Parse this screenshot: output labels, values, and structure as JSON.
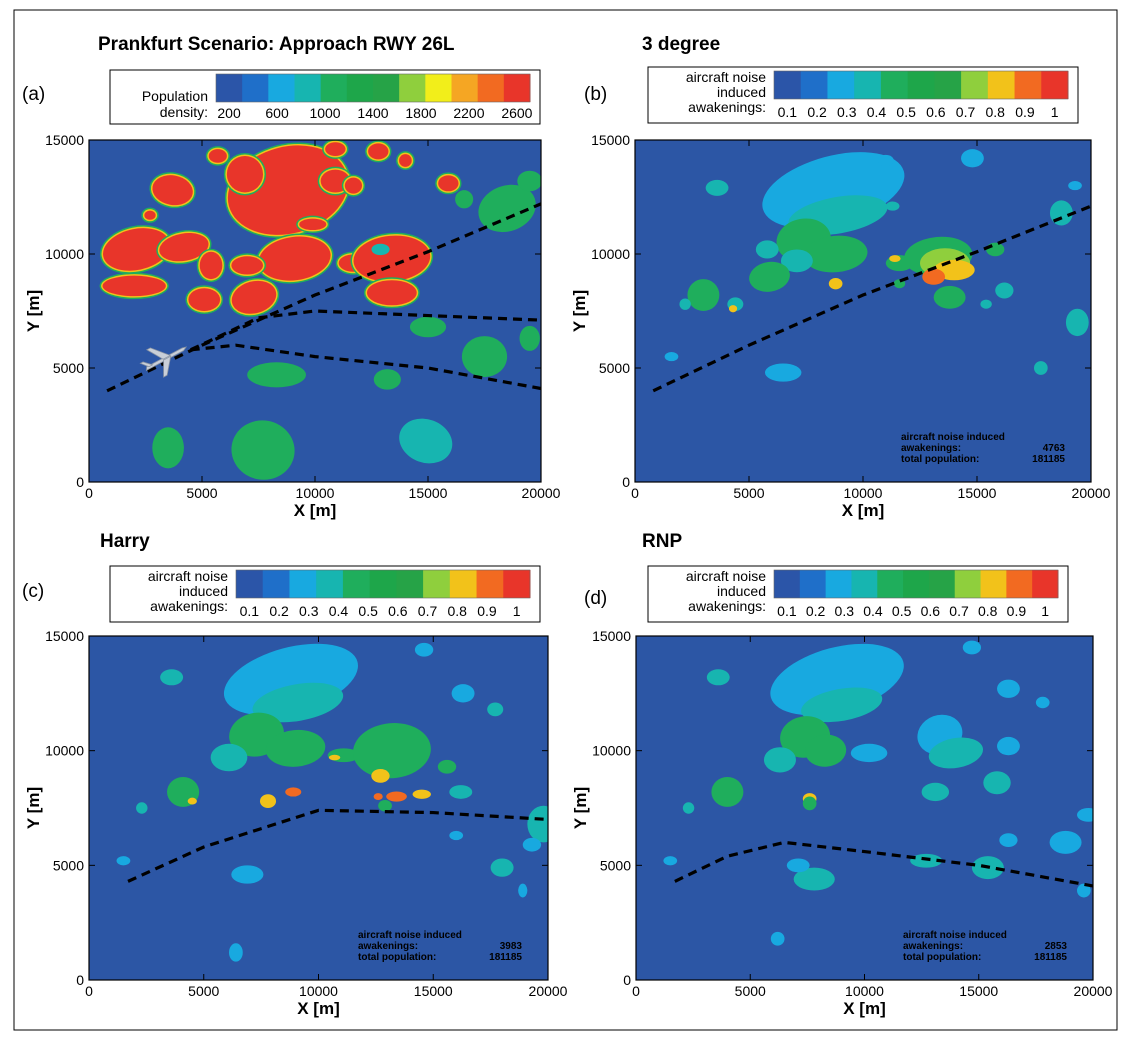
{
  "chart_data": [
    {
      "type": "heatmap",
      "panel_label": "(a)",
      "title": "Prankfurt Scenario: Approach RWY 26L",
      "xlabel": "X [m]",
      "ylabel": "Y [m]",
      "xlim": [
        0,
        20000
      ],
      "ylim": [
        0,
        15000
      ],
      "x_ticks": [
        "0",
        "5000",
        "10000",
        "15000",
        "20000"
      ],
      "y_ticks": [
        "0",
        "5000",
        "10000",
        "15000"
      ],
      "legend": {
        "title_lines": [
          "Population",
          "density:"
        ],
        "tick_labels": [
          "200",
          "600",
          "1000",
          "1400",
          "1800",
          "2200",
          "2600"
        ],
        "colors": [
          "#2b55a8",
          "#1f6fc9",
          "#18a9e0",
          "#17b5b0",
          "#1fae5c",
          "#1ea64a",
          "#26a347",
          "#8fcf3d",
          "#f2ee1a",
          "#f5a623",
          "#f26a21",
          "#e8352a"
        ]
      },
      "flight_paths": [
        {
          "points": [
            [
              800,
              4000
            ],
            [
              5000,
              6000
            ],
            [
              10000,
              8200
            ],
            [
              15000,
              10100
            ],
            [
              20000,
              12200
            ]
          ]
        },
        {
          "points": [
            [
              4500,
              5800
            ],
            [
              7500,
              7200
            ],
            [
              10000,
              7500
            ],
            [
              15000,
              7300
            ],
            [
              20000,
              7100
            ]
          ]
        },
        {
          "points": [
            [
              4500,
              5800
            ],
            [
              6500,
              6000
            ],
            [
              10000,
              5500
            ],
            [
              15000,
              5000
            ],
            [
              20000,
              4100
            ]
          ]
        }
      ],
      "aircraft_icon": "airplane-icon"
    },
    {
      "type": "heatmap",
      "panel_label": "(b)",
      "title": "3 degree",
      "xlabel": "X [m]",
      "ylabel": "Y [m]",
      "xlim": [
        0,
        20000
      ],
      "ylim": [
        0,
        15000
      ],
      "x_ticks": [
        "0",
        "5000",
        "10000",
        "15000",
        "20000"
      ],
      "y_ticks": [
        "0",
        "5000",
        "10000",
        "15000"
      ],
      "legend": {
        "title_lines": [
          "aircraft noise",
          "induced",
          "awakenings:"
        ],
        "tick_labels": [
          "0.1",
          "0.2",
          "0.3",
          "0.4",
          "0.5",
          "0.6",
          "0.7",
          "0.8",
          "0.9",
          "1"
        ],
        "colors": [
          "#2b55a8",
          "#1f6fc9",
          "#18a9e0",
          "#17b5b0",
          "#1fae5c",
          "#1ea64a",
          "#26a347",
          "#8fcf3d",
          "#f2c21a",
          "#f26a21",
          "#e8352a"
        ]
      },
      "flight_paths": [
        {
          "points": [
            [
              800,
              4000
            ],
            [
              5000,
              6000
            ],
            [
              10000,
              8200
            ],
            [
              15000,
              10100
            ],
            [
              20000,
              12100
            ]
          ]
        }
      ],
      "annotation": {
        "lines": [
          "aircraft noise induced",
          "awakenings:",
          "total population:"
        ],
        "values": [
          "4763",
          "181185"
        ]
      }
    },
    {
      "type": "heatmap",
      "panel_label": "(c)",
      "title": "Harry",
      "xlabel": "X [m]",
      "ylabel": "Y [m]",
      "xlim": [
        0,
        20000
      ],
      "ylim": [
        0,
        15000
      ],
      "x_ticks": [
        "0",
        "5000",
        "10000",
        "15000",
        "20000"
      ],
      "y_ticks": [
        "0",
        "5000",
        "10000",
        "15000"
      ],
      "legend": {
        "title_lines": [
          "aircraft noise",
          "induced",
          "awakenings:"
        ],
        "tick_labels": [
          "0.1",
          "0.2",
          "0.3",
          "0.4",
          "0.5",
          "0.6",
          "0.7",
          "0.8",
          "0.9",
          "1"
        ],
        "colors": [
          "#2b55a8",
          "#1f6fc9",
          "#18a9e0",
          "#17b5b0",
          "#1fae5c",
          "#1ea64a",
          "#26a347",
          "#8fcf3d",
          "#f2c21a",
          "#f26a21",
          "#e8352a"
        ]
      },
      "flight_paths": [
        {
          "points": [
            [
              1700,
              4300
            ],
            [
              5000,
              5800
            ],
            [
              10000,
              7400
            ],
            [
              15000,
              7300
            ],
            [
              20000,
              7000
            ]
          ]
        }
      ],
      "annotation": {
        "lines": [
          "aircraft noise induced",
          "awakenings:",
          "total population:"
        ],
        "values": [
          "3983",
          "181185"
        ]
      }
    },
    {
      "type": "heatmap",
      "panel_label": "(d)",
      "title": "RNP",
      "xlabel": "X [m]",
      "ylabel": "Y [m]",
      "xlim": [
        0,
        20000
      ],
      "ylim": [
        0,
        15000
      ],
      "x_ticks": [
        "0",
        "5000",
        "10000",
        "15000",
        "20000"
      ],
      "y_ticks": [
        "0",
        "5000",
        "10000",
        "15000"
      ],
      "legend": {
        "title_lines": [
          "aircraft noise",
          "induced",
          "awakenings:"
        ],
        "tick_labels": [
          "0.1",
          "0.2",
          "0.3",
          "0.4",
          "0.5",
          "0.6",
          "0.7",
          "0.8",
          "0.9",
          "1"
        ],
        "colors": [
          "#2b55a8",
          "#1f6fc9",
          "#18a9e0",
          "#17b5b0",
          "#1fae5c",
          "#1ea64a",
          "#26a347",
          "#8fcf3d",
          "#f2c21a",
          "#f26a21",
          "#e8352a"
        ]
      },
      "flight_paths": [
        {
          "points": [
            [
              1700,
              4300
            ],
            [
              4000,
              5400
            ],
            [
              6500,
              6000
            ],
            [
              10000,
              5600
            ],
            [
              15000,
              5000
            ],
            [
              20000,
              4100
            ]
          ]
        }
      ],
      "annotation": {
        "lines": [
          "aircraft noise induced",
          "awakenings:",
          "total population:"
        ],
        "values": [
          "2853",
          "181185"
        ]
      }
    }
  ],
  "colors": {
    "background_field": "#2c56a5",
    "path": "#000000",
    "red": "#e8352a",
    "green": "#1fae5c",
    "teal": "#17b5b0",
    "cyan": "#18a9e0",
    "yellow": "#f2c21a",
    "orange": "#f26a21",
    "lightgreen": "#8fcf3d"
  }
}
